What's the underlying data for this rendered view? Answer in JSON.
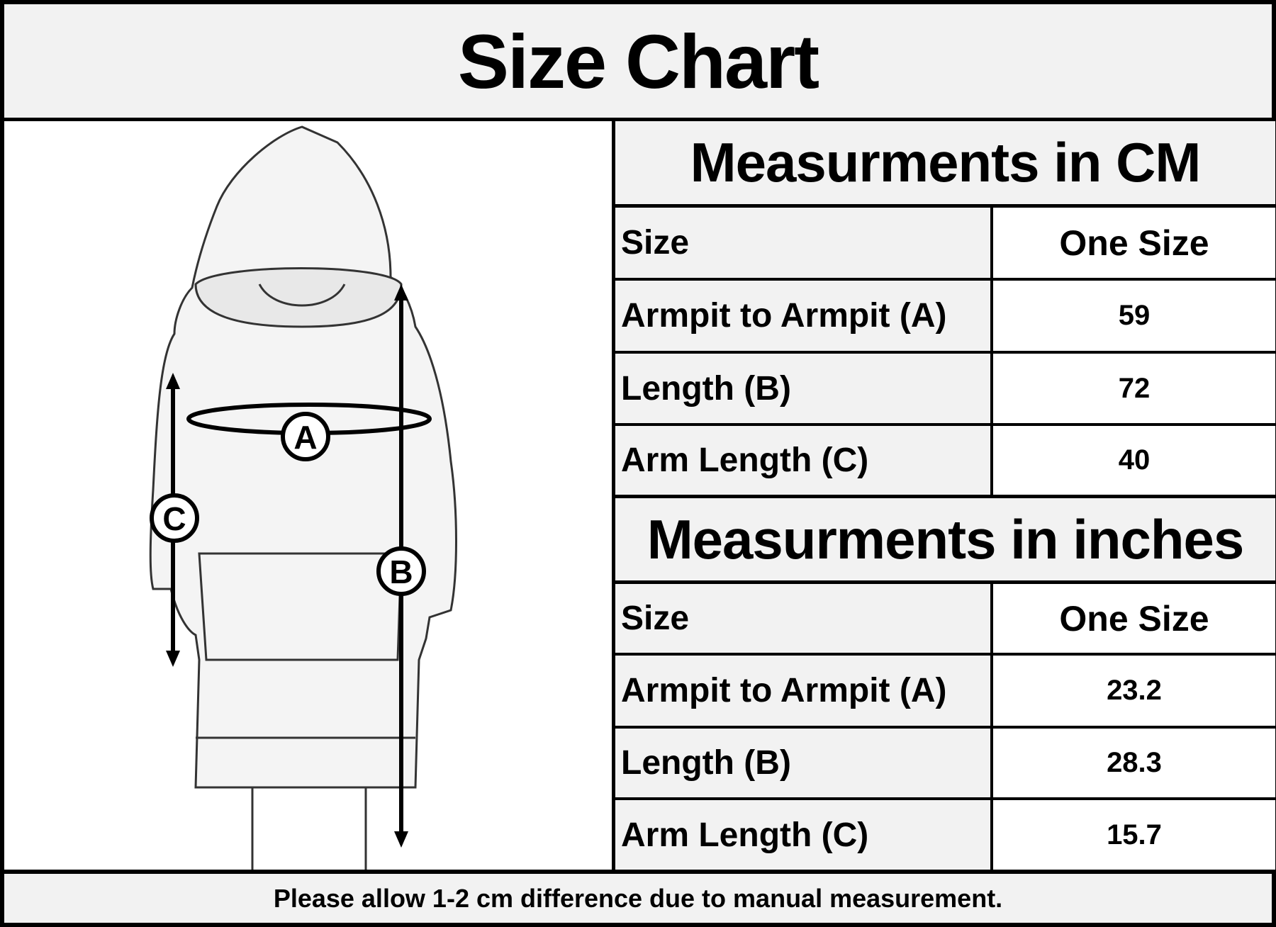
{
  "title": "Size Chart",
  "figure": {
    "labels": {
      "a": "A",
      "b": "B",
      "c": "C"
    }
  },
  "cm": {
    "heading": "Measurments in CM",
    "header": {
      "label": "Size",
      "value": "One Size"
    },
    "rows": [
      {
        "label": "Armpit to Armpit (A)",
        "value": "59"
      },
      {
        "label": "Length (B)",
        "value": "72"
      },
      {
        "label": "Arm Length (C)",
        "value": "40"
      }
    ]
  },
  "inches": {
    "heading": "Measurments in inches",
    "header": {
      "label": "Size",
      "value": "One Size"
    },
    "rows": [
      {
        "label": "Armpit to Armpit (A)",
        "value": "23.2"
      },
      {
        "label": "Length (B)",
        "value": "28.3"
      },
      {
        "label": "Arm Length (C)",
        "value": "15.7"
      }
    ]
  },
  "footer": "Please allow 1-2 cm difference due to manual measurement."
}
